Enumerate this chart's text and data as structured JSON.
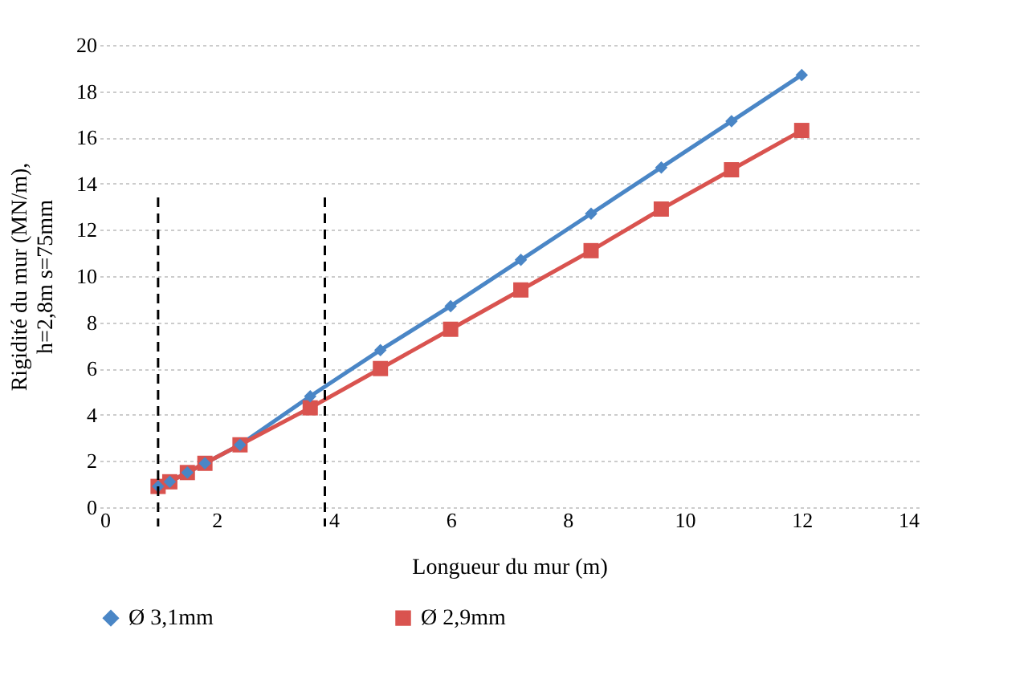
{
  "chart_data": {
    "type": "line",
    "xlabel": "Longueur du mur (m)",
    "ylabel": "Rigidité du mur (MN/m), h=2,8m s=75mm",
    "x": [
      1.0,
      1.2,
      1.5,
      1.8,
      2.4,
      3.6,
      4.8,
      6.0,
      7.2,
      8.4,
      9.6,
      10.8,
      12.0
    ],
    "series": [
      {
        "name": "Ø 3,1mm",
        "color": "#4a86c6",
        "marker": "diamond",
        "values": [
          0.9,
          1.1,
          1.5,
          1.9,
          2.7,
          4.8,
          6.8,
          8.7,
          10.7,
          12.7,
          14.7,
          16.7,
          18.7
        ]
      },
      {
        "name": "Ø 2,9mm",
        "color": "#d9534f",
        "marker": "square",
        "values": [
          0.9,
          1.1,
          1.5,
          1.9,
          2.7,
          4.3,
          6.0,
          7.7,
          9.4,
          11.1,
          12.9,
          14.6,
          16.3
        ]
      }
    ],
    "xlim": [
      0,
      14
    ],
    "xticks": [
      0,
      2,
      4,
      6,
      8,
      10,
      12,
      14
    ],
    "ylim": [
      0,
      20
    ],
    "yticks": [
      0,
      2,
      4,
      6,
      8,
      10,
      12,
      14,
      16,
      18,
      20
    ],
    "grid": "y",
    "legend": "bottom",
    "line_style": "solid",
    "ref_lines": [
      {
        "axis": "x",
        "value": 1.0,
        "color": "#000000",
        "line_style": "dashed"
      },
      {
        "axis": "x",
        "value": 3.85,
        "color": "#000000",
        "line_style": "dashed"
      }
    ]
  }
}
